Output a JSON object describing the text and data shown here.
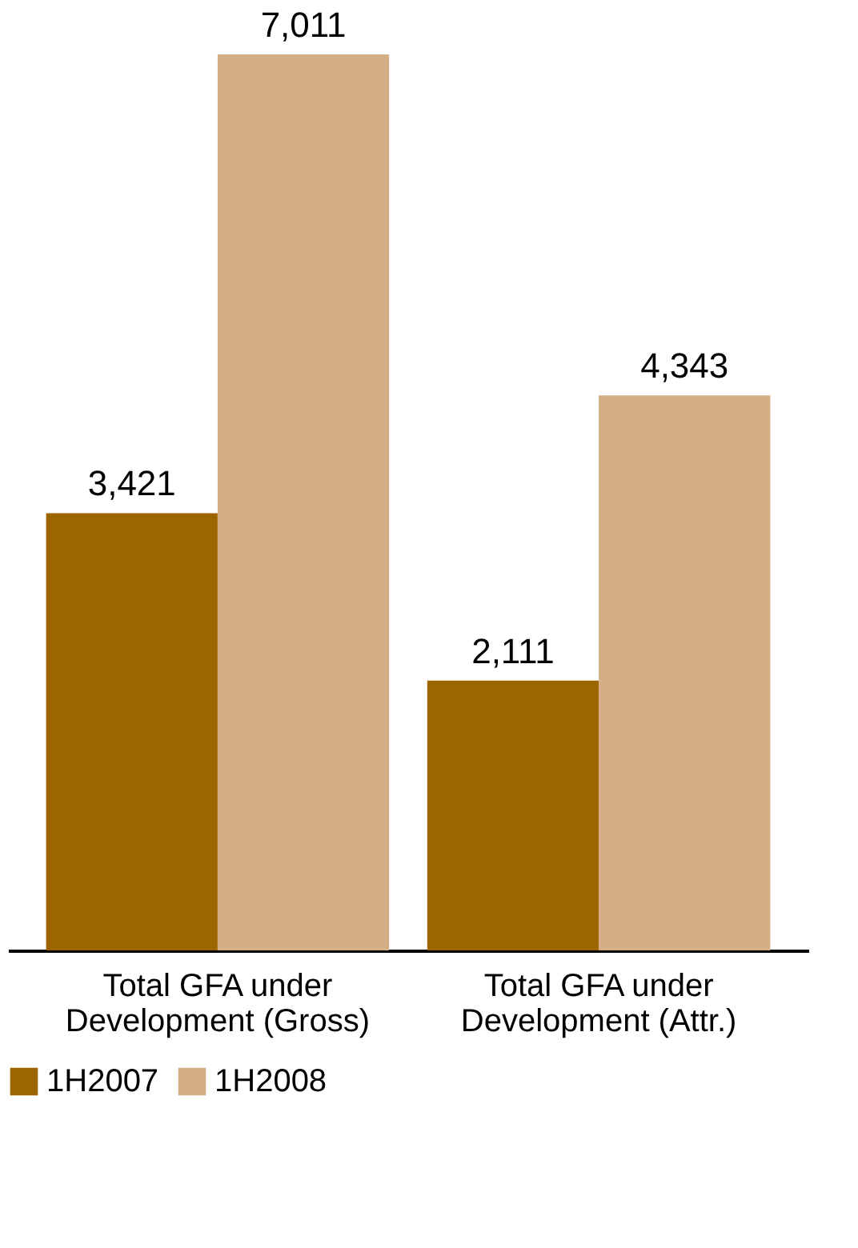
{
  "chart_data": {
    "type": "bar",
    "categories": [
      "Total GFA under Development (Gross)",
      "Total GFA under Development (Attr.)"
    ],
    "series": [
      {
        "name": "1H2007",
        "color": "#9c6500",
        "values": [
          3421,
          2111
        ],
        "value_labels": [
          "3,421",
          "2,111"
        ]
      },
      {
        "name": "1H2008",
        "color": "#d4ae84",
        "values": [
          7011,
          4343
        ],
        "value_labels": [
          "7,011",
          "4,343"
        ]
      }
    ],
    "legend": "bottom",
    "grid": false
  }
}
